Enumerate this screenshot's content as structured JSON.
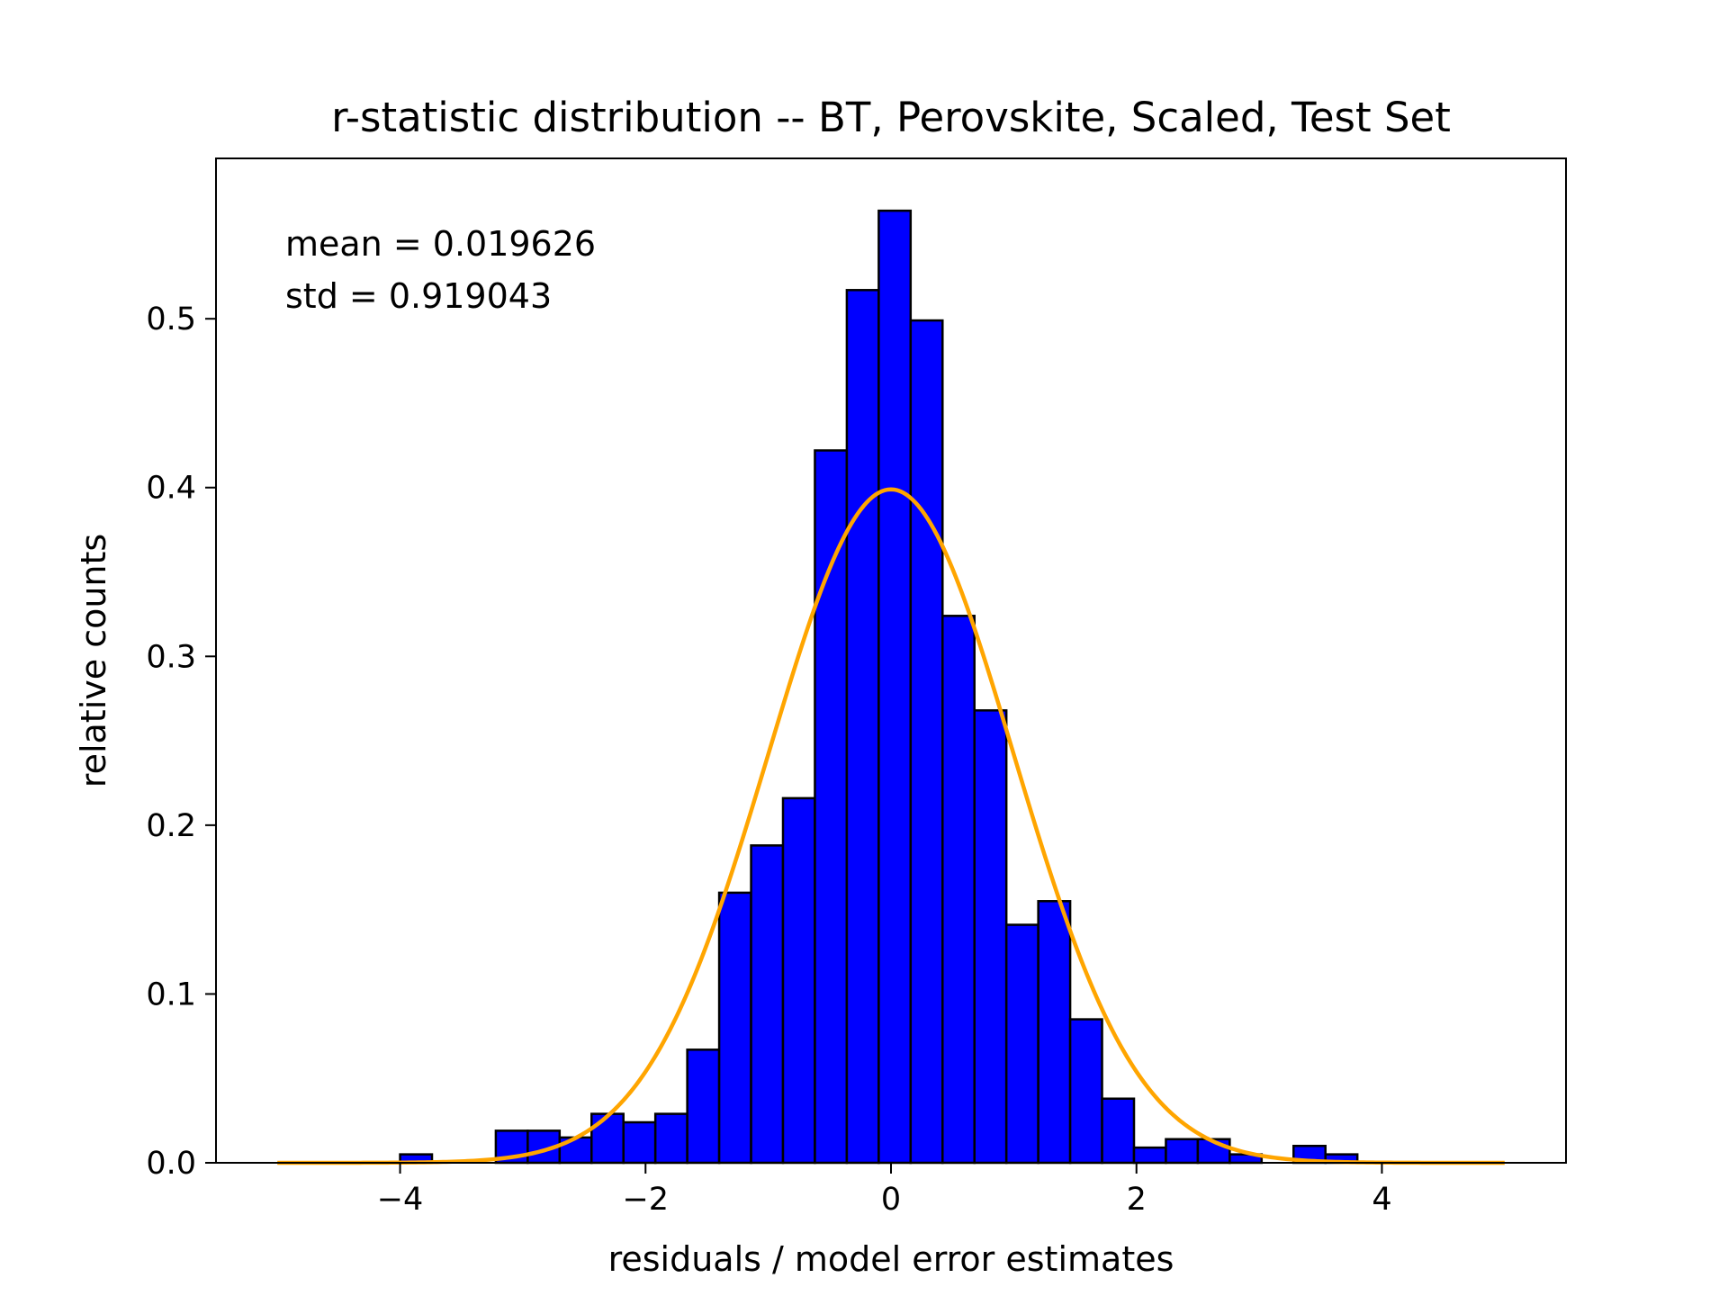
{
  "chart_data": {
    "type": "bar",
    "title": "r-statistic distribution -- BT, Perovskite, Scaled, Test Set",
    "xlabel": "residuals / model error estimates",
    "ylabel": "relative counts",
    "xlim": [
      -5.5,
      5.5
    ],
    "ylim": [
      0.0,
      0.595
    ],
    "xticks": [
      -4,
      -2,
      0,
      2,
      4
    ],
    "xtick_labels": [
      "−4",
      "−2",
      "0",
      "2",
      "4"
    ],
    "yticks": [
      0.0,
      0.1,
      0.2,
      0.3,
      0.4,
      0.5
    ],
    "ytick_labels": [
      "0.0",
      "0.1",
      "0.2",
      "0.3",
      "0.4",
      "0.5"
    ],
    "grid": false,
    "bins": {
      "edges": [
        -4.0,
        -3.74,
        -3.48,
        -3.22,
        -2.96,
        -2.7,
        -2.44,
        -2.18,
        -1.92,
        -1.66,
        -1.4,
        -1.14,
        -0.88,
        -0.62,
        -0.36,
        -0.1,
        0.16,
        0.42,
        0.68,
        0.94,
        1.2,
        1.46,
        1.72,
        1.98,
        2.24,
        2.5,
        2.76,
        3.02,
        3.28,
        3.54,
        3.8
      ],
      "values": [
        0.005,
        0.0,
        0.0,
        0.019,
        0.019,
        0.015,
        0.029,
        0.024,
        0.029,
        0.067,
        0.16,
        0.188,
        0.216,
        0.422,
        0.517,
        0.564,
        0.499,
        0.324,
        0.268,
        0.141,
        0.155,
        0.085,
        0.038,
        0.009,
        0.014,
        0.014,
        0.005,
        0.0,
        0.01,
        0.005
      ],
      "fill_color": "#0000ff",
      "edge_color": "#000000"
    },
    "curve": {
      "type": "normal-pdf",
      "mean": 0.0,
      "std": 1.0,
      "x_range": [
        -5.0,
        5.0
      ],
      "color": "#ffa500"
    },
    "annotations": [
      "mean = 0.019626",
      "std = 0.919043"
    ]
  }
}
